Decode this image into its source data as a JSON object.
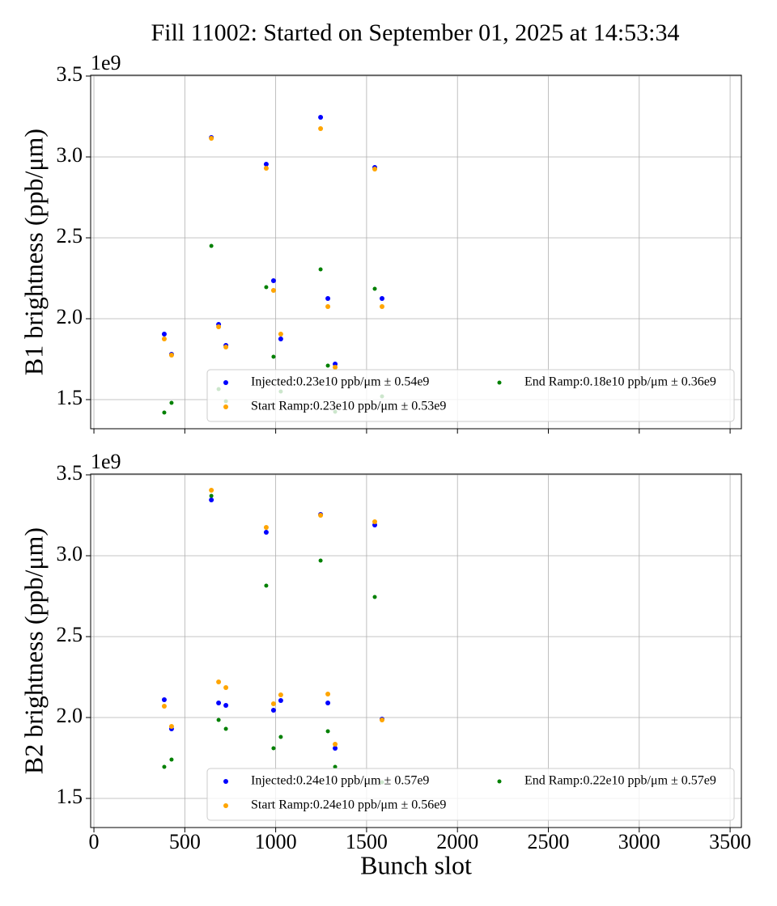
{
  "chart_data": [
    {
      "type": "scatter",
      "title": "Fill 11002: Started on September 01, 2025 at 14:53:34",
      "ylabel": "B1 brightness (ppb/μm)",
      "offset_text": "1e9",
      "x": [
        387,
        427,
        646,
        686,
        726,
        948,
        988,
        1028,
        1247,
        1287,
        1327,
        1545,
        1585
      ],
      "series": [
        {
          "name": "Injected:0.23e10 ppb/μm ± 0.54e9",
          "color": "#0000ff",
          "values": [
            1905000000,
            1780000000,
            3120000000,
            1965000000,
            1835000000,
            2955000000,
            2235000000,
            1875000000,
            3245000000,
            2125000000,
            1720000000,
            2935000000,
            2125000000
          ]
        },
        {
          "name": "Start Ramp:0.23e10 ppb/μm ± 0.53e9",
          "color": "#ffa500",
          "values": [
            1875000000,
            1775000000,
            3115000000,
            1950000000,
            1825000000,
            2930000000,
            2175000000,
            1905000000,
            3175000000,
            2075000000,
            1700000000,
            2925000000,
            2075000000
          ]
        },
        {
          "name": "End Ramp:0.18e10 ppb/μm ± 0.36e9",
          "color": "#008000",
          "values": [
            1420000000,
            1480000000,
            2450000000,
            1565000000,
            1490000000,
            2195000000,
            1765000000,
            1550000000,
            2305000000,
            1710000000,
            1425000000,
            2185000000,
            1520000000
          ]
        }
      ],
      "xlim": [
        -18,
        3562
      ],
      "xticks": [
        0,
        500,
        1000,
        1500,
        2000,
        2500,
        3000,
        3500
      ],
      "ylim": [
        1320000000,
        3505000000
      ],
      "yticks": [
        {
          "value": 1500000000,
          "label": "1.5"
        },
        {
          "value": 2000000000,
          "label": "2.0"
        },
        {
          "value": 2500000000,
          "label": "2.5"
        },
        {
          "value": 3000000000,
          "label": "3.0"
        },
        {
          "value": 3500000000,
          "label": "3.5"
        }
      ],
      "grid": true,
      "legend": "lower right",
      "legend_columns": 2
    },
    {
      "type": "scatter",
      "xlabel": "Bunch slot",
      "ylabel": "B2 brightness (ppb/μm)",
      "offset_text": "1e9",
      "x": [
        387,
        427,
        646,
        686,
        726,
        948,
        988,
        1028,
        1247,
        1287,
        1327,
        1545,
        1585
      ],
      "series": [
        {
          "name": "Injected:0.24e10 ppb/μm ± 0.57e9",
          "color": "#0000ff",
          "values": [
            2110000000,
            1930000000,
            3345000000,
            2090000000,
            2075000000,
            3145000000,
            2045000000,
            2105000000,
            3255000000,
            2090000000,
            1810000000,
            3190000000,
            1990000000
          ]
        },
        {
          "name": "Start Ramp:0.24e10 ppb/μm ± 0.56e9",
          "color": "#ffa500",
          "values": [
            2070000000,
            1945000000,
            3405000000,
            2220000000,
            2185000000,
            3175000000,
            2085000000,
            2140000000,
            3250000000,
            2145000000,
            1835000000,
            3210000000,
            1985000000
          ]
        },
        {
          "name": "End Ramp:0.22e10 ppb/μm ± 0.57e9",
          "color": "#008000",
          "values": [
            1695000000,
            1740000000,
            3370000000,
            1985000000,
            1930000000,
            2815000000,
            1810000000,
            1880000000,
            2970000000,
            1915000000,
            1695000000,
            2745000000,
            1600000000
          ]
        }
      ],
      "xlim": [
        -18,
        3562
      ],
      "xticks": [
        0,
        500,
        1000,
        1500,
        2000,
        2500,
        3000,
        3500
      ],
      "ylim": [
        1320000000,
        3505000000
      ],
      "yticks": [
        {
          "value": 1500000000,
          "label": "1.5"
        },
        {
          "value": 2000000000,
          "label": "2.0"
        },
        {
          "value": 2500000000,
          "label": "2.5"
        },
        {
          "value": 3000000000,
          "label": "3.0"
        },
        {
          "value": 3500000000,
          "label": "3.5"
        }
      ],
      "grid": true,
      "legend": "lower right",
      "legend_columns": 2
    }
  ]
}
